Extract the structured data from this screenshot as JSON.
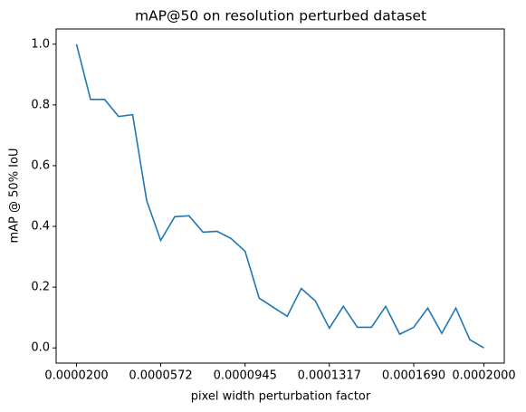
{
  "chart_data": {
    "type": "line",
    "title": "mAP@50 on resolution perturbed dataset",
    "xlabel": "pixel width perturbation factor",
    "ylabel": "mAP @ 50% IoU",
    "x": [
      2e-05,
      2.62e-05,
      3.24e-05,
      3.86e-05,
      4.48e-05,
      5.1e-05,
      5.72e-05,
      6.34e-05,
      6.97e-05,
      7.59e-05,
      8.21e-05,
      8.83e-05,
      9.45e-05,
      0.0001007,
      0.0001069,
      0.0001131,
      0.0001193,
      0.0001255,
      0.0001317,
      0.0001379,
      0.0001441,
      0.0001503,
      0.0001566,
      0.0001628,
      0.000169,
      0.0001752,
      0.0001814,
      0.0001876,
      0.0001938,
      0.0002
    ],
    "series": [
      {
        "color": "#1f77b4",
        "values": [
          1.0,
          0.818,
          0.818,
          0.762,
          0.768,
          0.485,
          0.354,
          0.432,
          0.435,
          0.381,
          0.384,
          0.36,
          0.318,
          0.164,
          0.134,
          0.104,
          0.196,
          0.155,
          0.065,
          0.137,
          0.068,
          0.068,
          0.137,
          0.045,
          0.068,
          0.131,
          0.048,
          0.131,
          0.027,
          0.0
        ]
      }
    ],
    "xlim": [
      1.1e-05,
      0.000209
    ],
    "ylim": [
      -0.05,
      1.05
    ],
    "xticks": [
      {
        "value": 2e-05,
        "label": "0.0000200"
      },
      {
        "value": 5.72e-05,
        "label": "0.0000572"
      },
      {
        "value": 9.45e-05,
        "label": "0.0000945"
      },
      {
        "value": 0.0001317,
        "label": "0.0001317"
      },
      {
        "value": 0.000169,
        "label": "0.0001690"
      },
      {
        "value": 0.0002,
        "label": "0.0002000"
      }
    ],
    "yticks": [
      {
        "value": 0,
        "label": "0.0"
      },
      {
        "value": 0.2,
        "label": "0.2"
      },
      {
        "value": 0.4,
        "label": "0.4"
      },
      {
        "value": 0.6,
        "label": "0.6"
      },
      {
        "value": 0.8,
        "label": "0.8"
      },
      {
        "value": 1.0,
        "label": "1.0"
      }
    ]
  }
}
